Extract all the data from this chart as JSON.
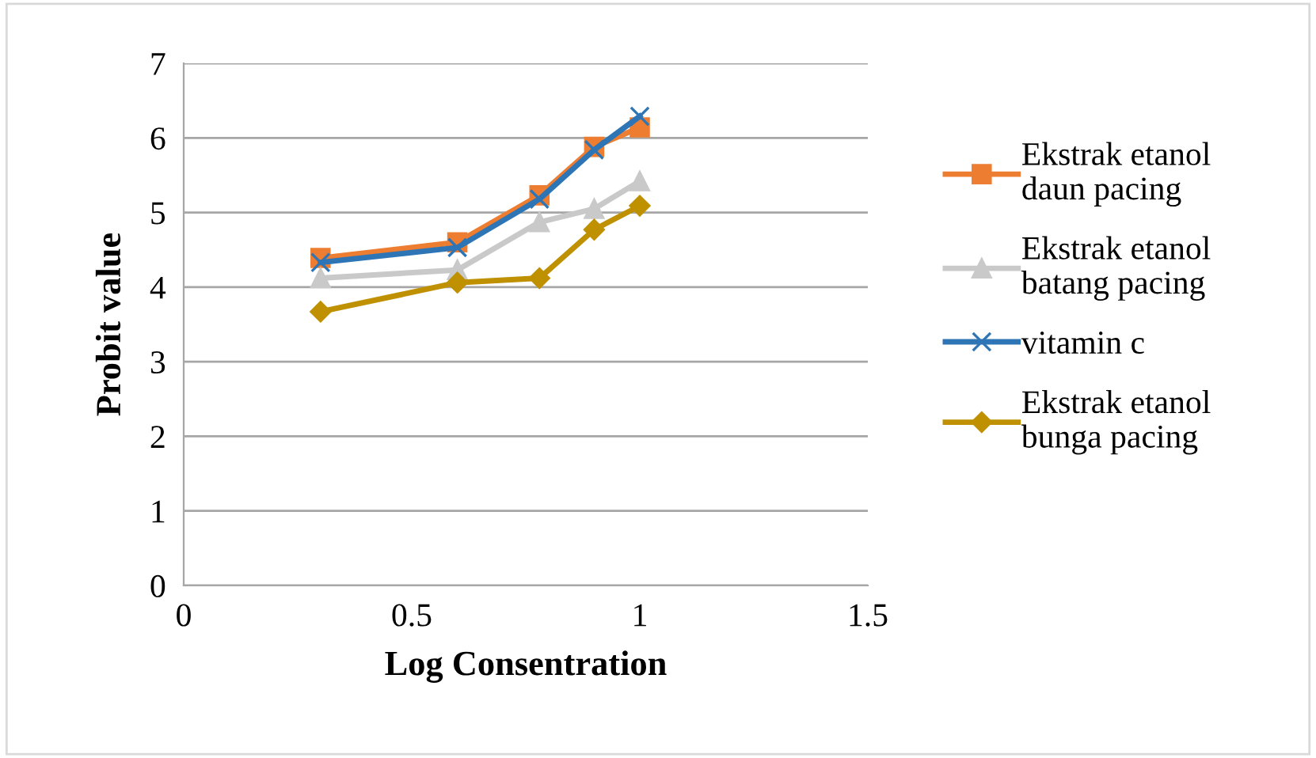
{
  "chart_data": {
    "type": "line",
    "xlabel": "Log Consentration",
    "ylabel": "Probit value",
    "x": [
      0.3,
      0.6,
      0.78,
      0.9,
      1.0
    ],
    "series": [
      {
        "name": "Ekstrak etanol daun pacing",
        "color": "#ed7d31",
        "marker": "square",
        "values": [
          4.39,
          4.6,
          5.23,
          5.88,
          6.14
        ]
      },
      {
        "name": "Ekstrak etanol batang pacing",
        "color": "#c9c9c9",
        "marker": "triangle",
        "values": [
          4.12,
          4.23,
          4.87,
          5.05,
          5.42
        ]
      },
      {
        "name": "vitamin c",
        "color": "#2e75b6",
        "marker": "cross",
        "values": [
          4.33,
          4.53,
          5.18,
          5.84,
          6.29
        ]
      },
      {
        "name": "Ekstrak etanol bunga pacing",
        "color": "#bf9000",
        "marker": "diamond",
        "values": [
          3.67,
          4.06,
          4.12,
          4.77,
          5.09
        ]
      }
    ],
    "xlim": [
      0,
      1.5
    ],
    "xticks": [
      0,
      0.5,
      1,
      1.5
    ],
    "ylim": [
      0,
      7
    ],
    "yticks": [
      0,
      1,
      2,
      3,
      4,
      5,
      6,
      7
    ],
    "grid": "y",
    "legend": "right",
    "line_style": "solid"
  }
}
